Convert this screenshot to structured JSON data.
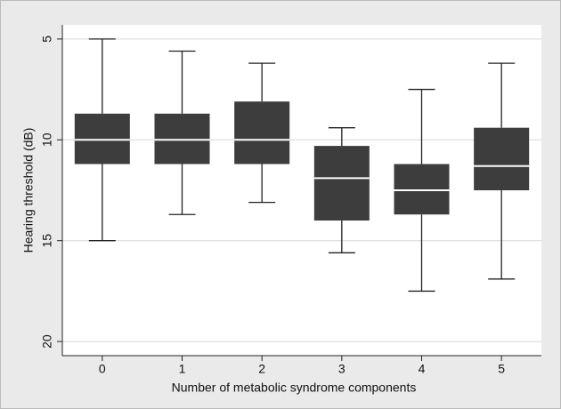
{
  "chart_data": {
    "type": "box",
    "x_label": "Number of metabolic syndrome components",
    "y_label": "Hearing threshold (dB)",
    "categories": [
      "0",
      "1",
      "2",
      "3",
      "4",
      "5"
    ],
    "boxes": [
      {
        "min": 5.0,
        "q1": 8.7,
        "median": 10.0,
        "q3": 11.2,
        "max": 15.0
      },
      {
        "min": 5.6,
        "q1": 8.7,
        "median": 10.0,
        "q3": 11.2,
        "max": 13.7
      },
      {
        "min": 6.2,
        "q1": 8.1,
        "median": 10.0,
        "q3": 11.2,
        "max": 13.1
      },
      {
        "min": 9.4,
        "q1": 10.3,
        "median": 11.9,
        "q3": 14.0,
        "max": 15.6
      },
      {
        "min": 7.5,
        "q1": 11.2,
        "median": 12.5,
        "q3": 13.7,
        "max": 17.5
      },
      {
        "min": 6.2,
        "q1": 9.4,
        "median": 11.3,
        "q3": 12.5,
        "max": 16.9
      }
    ],
    "color": "#3d3d3d",
    "median_color": "#ffffff",
    "ylim": [
      4.3,
      20.7
    ],
    "y_inverted": true,
    "yticks": [
      5,
      10,
      15,
      20
    ],
    "grid": true
  }
}
